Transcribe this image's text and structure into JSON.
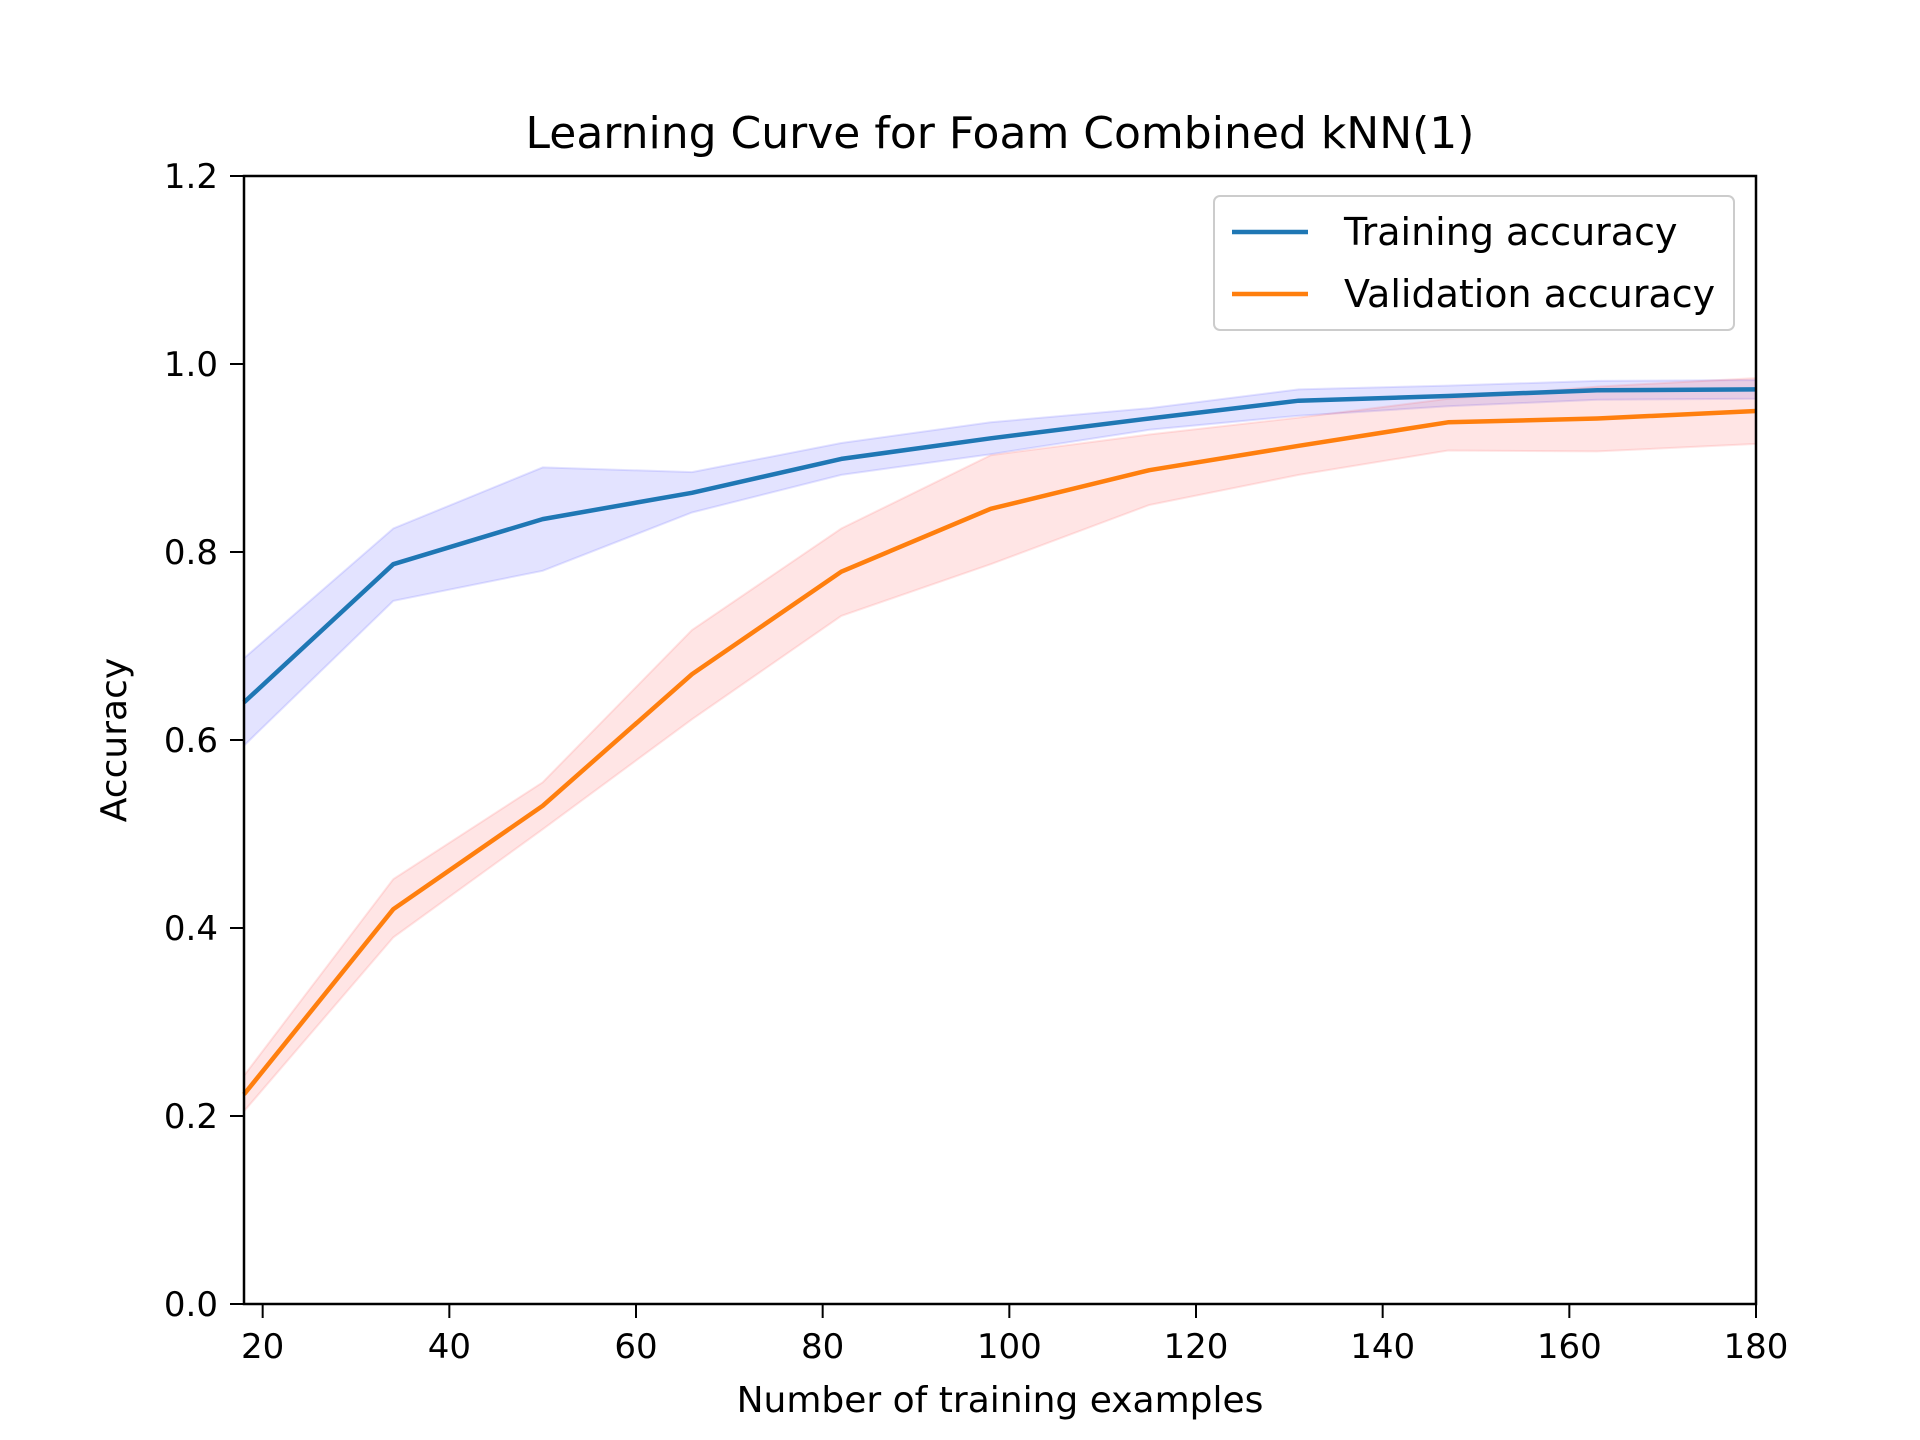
{
  "chart_data": {
    "type": "line",
    "title": "Learning Curve for Foam Combined kNN(1)",
    "xlabel": "Number of training examples",
    "ylabel": "Accuracy",
    "xlim": [
      18,
      180
    ],
    "ylim": [
      0.0,
      1.2
    ],
    "xticks": [
      20,
      40,
      60,
      80,
      100,
      120,
      140,
      160,
      180
    ],
    "xtick_labels": [
      "20",
      "40",
      "60",
      "80",
      "100",
      "120",
      "140",
      "160",
      "180"
    ],
    "yticks": [
      0.0,
      0.2,
      0.4,
      0.6,
      0.8,
      1.0,
      1.2
    ],
    "ytick_labels": [
      "0.0",
      "0.2",
      "0.4",
      "0.6",
      "0.8",
      "1.0",
      "1.2"
    ],
    "grid": false,
    "legend_position": "top-right",
    "x": [
      18,
      34,
      50,
      66,
      82,
      98,
      115,
      131,
      147,
      163,
      180
    ],
    "series": [
      {
        "name": "Training accuracy",
        "color": "#1f77b4",
        "band_color": "#4040ff",
        "values": [
          0.64,
          0.787,
          0.835,
          0.863,
          0.899,
          0.921,
          0.942,
          0.961,
          0.966,
          0.972,
          0.973
        ],
        "lower": [
          0.594,
          0.748,
          0.78,
          0.842,
          0.882,
          0.904,
          0.93,
          0.945,
          0.955,
          0.962,
          0.963
        ],
        "upper": [
          0.687,
          0.825,
          0.89,
          0.885,
          0.916,
          0.938,
          0.953,
          0.973,
          0.977,
          0.982,
          0.983
        ]
      },
      {
        "name": "Validation accuracy",
        "color": "#ff7f0e",
        "band_color": "#ff5050",
        "values": [
          0.223,
          0.42,
          0.53,
          0.67,
          0.779,
          0.846,
          0.887,
          0.913,
          0.938,
          0.942,
          0.95
        ],
        "lower": [
          0.205,
          0.39,
          0.505,
          0.622,
          0.732,
          0.787,
          0.85,
          0.882,
          0.908,
          0.907,
          0.915
        ],
        "upper": [
          0.243,
          0.452,
          0.555,
          0.717,
          0.825,
          0.903,
          0.925,
          0.943,
          0.963,
          0.976,
          0.985
        ]
      }
    ]
  }
}
